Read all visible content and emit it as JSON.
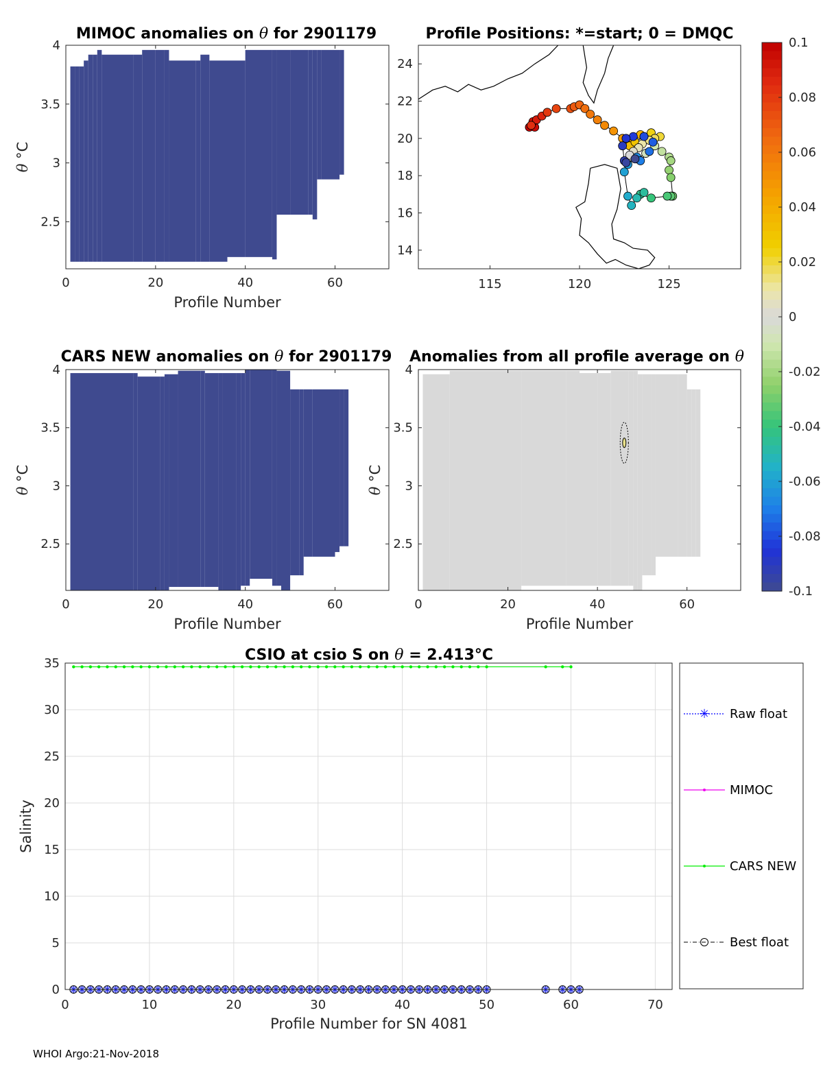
{
  "footer": "WHOI Argo:21-Nov-2018",
  "colors": {
    "anomaly_fill": "#3f598f",
    "neutral_fill": "#d9d9d9",
    "cars_line": "#00ee00",
    "mimoc_line": "#ee00ee",
    "raw_line": "#0000ff"
  },
  "chart_data": [
    {
      "id": "mimoc",
      "type": "heatmap",
      "title_prefix": "MIMOC anomalies on ",
      "title_symbol": "θ",
      "title_suffix": "  for 2901179",
      "xlabel": "Profile Number",
      "ylabel_symbol": "θ",
      "ylabel_unit": "°C",
      "xlim": [
        0,
        72
      ],
      "ylim": [
        2.1,
        4.0
      ],
      "xticks": [
        "0",
        "20",
        "40",
        "60"
      ],
      "yticks": [
        "2.5",
        "3",
        "3.5",
        "4"
      ],
      "fill_value": -0.1,
      "columns": [
        [
          1,
          2.16,
          3.82
        ],
        [
          2,
          2.16,
          3.82
        ],
        [
          3,
          2.16,
          3.82
        ],
        [
          4,
          2.16,
          3.87
        ],
        [
          5,
          2.16,
          3.92
        ],
        [
          6,
          2.16,
          3.92
        ],
        [
          7,
          2.16,
          3.96
        ],
        [
          8,
          2.16,
          3.92
        ],
        [
          15,
          2.16,
          3.92
        ],
        [
          17,
          2.16,
          3.96
        ],
        [
          20,
          2.16,
          3.96
        ],
        [
          22,
          2.16,
          3.96
        ],
        [
          23,
          2.16,
          3.87
        ],
        [
          29,
          2.16,
          3.87
        ],
        [
          30,
          2.16,
          3.92
        ],
        [
          32,
          2.16,
          3.87
        ],
        [
          36,
          2.2,
          3.87
        ],
        [
          40,
          2.2,
          3.96
        ],
        [
          46,
          2.18,
          3.96
        ],
        [
          47,
          2.56,
          3.96
        ],
        [
          50,
          2.56,
          3.96
        ],
        [
          54,
          2.56,
          3.96
        ],
        [
          55,
          2.52,
          3.96
        ],
        [
          56,
          2.86,
          3.96
        ],
        [
          57,
          2.86,
          3.96
        ],
        [
          60,
          2.86,
          3.96
        ],
        [
          61,
          2.9,
          3.96
        ]
      ]
    },
    {
      "id": "positions",
      "type": "scatter",
      "title": "Profile Positions: *=start; 0 = DMQC",
      "xlim": [
        111,
        129
      ],
      "ylim": [
        13,
        25
      ],
      "xticks": [
        "115",
        "120",
        "125"
      ],
      "yticks": [
        "14",
        "16",
        "18",
        "20",
        "22",
        "24"
      ],
      "lon": [
        117.2,
        117.5,
        117.4,
        117.6,
        117.9,
        117.3,
        118.2,
        118.7,
        119.5,
        119.7,
        120.0,
        120.3,
        120.6,
        121.0,
        121.4,
        121.9,
        122.4,
        122.7,
        123.0,
        123.4,
        122.8,
        123.1,
        123.6,
        124.0,
        124.5,
        124.2,
        123.9,
        123.5,
        123.3,
        123.0,
        122.8,
        123.2,
        123.7,
        124.2,
        124.6,
        125.0,
        125.1,
        125.0,
        125.1,
        125.2,
        125.1,
        124.9,
        124.0,
        123.4,
        123.6,
        123.2,
        122.9,
        122.7,
        122.5,
        122.7,
        123.2,
        123.4,
        123.9,
        124.1,
        123.6,
        123.0,
        122.6,
        122.4,
        122.5,
        122.6,
        123.1
      ],
      "lat": [
        20.6,
        20.6,
        20.9,
        21.0,
        21.2,
        20.7,
        21.4,
        21.6,
        21.6,
        21.7,
        21.8,
        21.6,
        21.3,
        21.0,
        20.7,
        20.4,
        20.0,
        19.8,
        19.9,
        20.2,
        19.6,
        19.8,
        20.1,
        20.3,
        20.1,
        20.0,
        19.9,
        19.7,
        19.5,
        19.3,
        19.1,
        18.9,
        19.2,
        19.6,
        19.3,
        19.0,
        18.8,
        18.3,
        17.9,
        16.9,
        16.9,
        16.9,
        16.8,
        17.0,
        17.1,
        16.8,
        16.4,
        16.9,
        18.2,
        18.6,
        19.0,
        18.8,
        19.3,
        19.8,
        20.1,
        20.1,
        20.0,
        19.6,
        18.8,
        18.7,
        18.9
      ],
      "anomaly_range": [
        -0.1,
        0.1
      ],
      "coast_labels": []
    },
    {
      "id": "cars",
      "type": "heatmap",
      "title_prefix": "CARS NEW anomalies on ",
      "title_symbol": "θ",
      "title_suffix": " for 2901179",
      "xlabel": "Profile Number",
      "ylabel_symbol": "θ",
      "ylabel_unit": "°C",
      "xlim": [
        0,
        72
      ],
      "ylim": [
        2.1,
        4.0
      ],
      "xticks": [
        "0",
        "20",
        "40",
        "60"
      ],
      "yticks": [
        "2.5",
        "3",
        "3.5",
        "4"
      ],
      "fill_value": -0.1,
      "columns": [
        [
          1,
          2.1,
          3.97
        ],
        [
          15,
          2.1,
          3.97
        ],
        [
          16,
          2.1,
          3.94
        ],
        [
          21,
          2.1,
          3.94
        ],
        [
          22,
          2.1,
          3.96
        ],
        [
          23,
          2.13,
          3.96
        ],
        [
          25,
          2.13,
          3.99
        ],
        [
          30,
          2.13,
          3.99
        ],
        [
          31,
          2.13,
          3.97
        ],
        [
          34,
          2.1,
          3.97
        ],
        [
          35,
          2.1,
          3.97
        ],
        [
          38,
          2.1,
          3.97
        ],
        [
          39,
          2.14,
          3.97
        ],
        [
          40,
          2.14,
          4.0
        ],
        [
          41,
          2.2,
          4.0
        ],
        [
          46,
          2.14,
          4.0
        ],
        [
          47,
          2.14,
          3.99
        ],
        [
          48,
          2.1,
          3.99
        ],
        [
          50,
          2.23,
          3.83
        ],
        [
          52,
          2.23,
          3.83
        ],
        [
          53,
          2.39,
          3.83
        ],
        [
          55,
          2.39,
          3.83
        ],
        [
          60,
          2.43,
          3.83
        ],
        [
          61,
          2.48,
          3.83
        ],
        [
          62,
          2.48,
          3.83
        ]
      ]
    },
    {
      "id": "allprofile",
      "type": "heatmap",
      "title_prefix": "Anomalies from all profile average on ",
      "title_symbol": "θ",
      "title_suffix": "",
      "xlabel": "Profile Number",
      "ylabel_symbol": "θ",
      "ylabel_unit": "°C",
      "xlim": [
        0,
        72
      ],
      "ylim": [
        2.1,
        4.0
      ],
      "xticks": [
        "0",
        "20",
        "40",
        "60"
      ],
      "yticks": [
        "2.5",
        "3",
        "3.5",
        "4"
      ],
      "fill_value": 0,
      "columns": [
        [
          1,
          2.1,
          3.96
        ],
        [
          7,
          2.1,
          3.99
        ],
        [
          23,
          2.14,
          3.99
        ],
        [
          33,
          2.14,
          3.99
        ],
        [
          36,
          2.14,
          3.97
        ],
        [
          40,
          2.14,
          3.97
        ],
        [
          43,
          2.14,
          3.99
        ],
        [
          47,
          2.14,
          3.99
        ],
        [
          48,
          2.1,
          3.99
        ],
        [
          49,
          2.1,
          3.96
        ],
        [
          50,
          2.23,
          3.96
        ],
        [
          52,
          2.23,
          3.96
        ],
        [
          53,
          2.39,
          3.96
        ],
        [
          55,
          2.39,
          3.96
        ],
        [
          58,
          2.39,
          3.96
        ],
        [
          60,
          2.39,
          3.83
        ],
        [
          61,
          2.39,
          3.83
        ],
        [
          62,
          2.39,
          3.83
        ]
      ],
      "contour_profile": 46,
      "contour_theta": 3.37
    },
    {
      "id": "salinity",
      "type": "line",
      "title_prefix": "CSIO at csio S on ",
      "title_symbol": "θ",
      "title_suffix": " = 2.413",
      "title_unit": "°C",
      "xlabel": "Profile Number for SN 4081",
      "ylabel": "Salinity",
      "xlim": [
        0,
        72
      ],
      "ylim": [
        0,
        35
      ],
      "xticks": [
        "0",
        "10",
        "20",
        "30",
        "40",
        "50",
        "60",
        "70"
      ],
      "yticks": [
        "0",
        "5",
        "10",
        "15",
        "20",
        "25",
        "30",
        "35"
      ],
      "grid": true,
      "series": [
        {
          "name": "Raw float",
          "style": "dotted-star",
          "x": [
            1,
            2,
            3,
            4,
            5,
            6,
            7,
            8,
            9,
            10,
            11,
            12,
            13,
            14,
            15,
            16,
            17,
            18,
            19,
            20,
            21,
            22,
            23,
            24,
            25,
            26,
            27,
            28,
            29,
            30,
            31,
            32,
            33,
            34,
            35,
            36,
            37,
            38,
            39,
            40,
            41,
            42,
            43,
            44,
            45,
            46,
            47,
            48,
            49,
            50,
            57,
            59,
            60,
            61
          ],
          "y_const": 0
        },
        {
          "name": "MIMOC",
          "style": "solid-dot",
          "x": [],
          "y_const": 0
        },
        {
          "name": "CARS NEW",
          "style": "solid-dot",
          "x": [
            1,
            2,
            3,
            4,
            5,
            6,
            7,
            8,
            9,
            10,
            11,
            12,
            13,
            14,
            15,
            16,
            17,
            18,
            19,
            20,
            21,
            22,
            23,
            24,
            25,
            26,
            27,
            28,
            29,
            30,
            31,
            32,
            33,
            34,
            35,
            36,
            37,
            38,
            39,
            40,
            41,
            42,
            43,
            44,
            45,
            46,
            47,
            48,
            49,
            50,
            57,
            59,
            60
          ],
          "y_const": 34.6
        },
        {
          "name": "Best float",
          "style": "dashdot-circle",
          "x": [
            1,
            2,
            3,
            4,
            5,
            6,
            7,
            8,
            9,
            10,
            11,
            12,
            13,
            14,
            15,
            16,
            17,
            18,
            19,
            20,
            21,
            22,
            23,
            24,
            25,
            26,
            27,
            28,
            29,
            30,
            31,
            32,
            33,
            34,
            35,
            36,
            37,
            38,
            39,
            40,
            41,
            42,
            43,
            44,
            45,
            46,
            47,
            48,
            49,
            50,
            57,
            59,
            60,
            61
          ],
          "y_const": 0
        }
      ],
      "legend_position": "right"
    }
  ],
  "colorbar": {
    "range": [
      -0.1,
      0.1
    ],
    "ticks": [
      "0.1",
      "0.08",
      "0.06",
      "0.04",
      "0.02",
      "0",
      "-0.02",
      "-0.04",
      "-0.06",
      "-0.08",
      "-0.1"
    ]
  }
}
